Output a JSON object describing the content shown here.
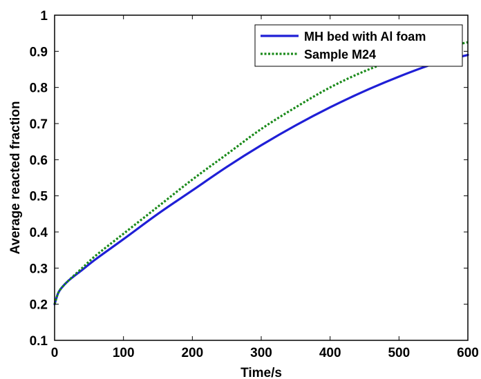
{
  "chart_data": {
    "type": "line",
    "title": "",
    "xlabel": "Time/s",
    "ylabel": "Average reacted fraction",
    "xlim": [
      0,
      600
    ],
    "ylim": [
      0.1,
      1
    ],
    "xticks": [
      0,
      100,
      200,
      300,
      400,
      500,
      600
    ],
    "yticks": [
      0.1,
      0.2,
      0.3,
      0.4,
      0.5,
      0.6,
      0.7,
      0.8,
      0.9,
      1
    ],
    "xtick_labels": [
      "0",
      "100",
      "200",
      "300",
      "400",
      "500",
      "600"
    ],
    "ytick_labels": [
      "0.1",
      "0.2",
      "0.3",
      "0.4",
      "0.5",
      "0.6",
      "0.7",
      "0.8",
      "0.9",
      "1"
    ],
    "grid": false,
    "legend_position": "top-right",
    "series": [
      {
        "name": "MH bed with Al foam",
        "color": "#1f1fd6",
        "style": "solid",
        "x": [
          0,
          5,
          10,
          20,
          40,
          60,
          100,
          150,
          200,
          250,
          300,
          350,
          400,
          450,
          500,
          550,
          600
        ],
        "y": [
          0.2,
          0.23,
          0.245,
          0.265,
          0.295,
          0.325,
          0.38,
          0.45,
          0.515,
          0.58,
          0.64,
          0.695,
          0.745,
          0.79,
          0.83,
          0.865,
          0.89
        ]
      },
      {
        "name": "Sample M24",
        "color": "#1a8a1a",
        "style": "dotted",
        "x": [
          0,
          5,
          10,
          20,
          40,
          60,
          100,
          150,
          200,
          250,
          300,
          350,
          400,
          450,
          500,
          550,
          600
        ],
        "y": [
          0.2,
          0.23,
          0.245,
          0.265,
          0.3,
          0.335,
          0.395,
          0.47,
          0.545,
          0.615,
          0.685,
          0.745,
          0.8,
          0.845,
          0.88,
          0.905,
          0.925
        ]
      }
    ]
  }
}
